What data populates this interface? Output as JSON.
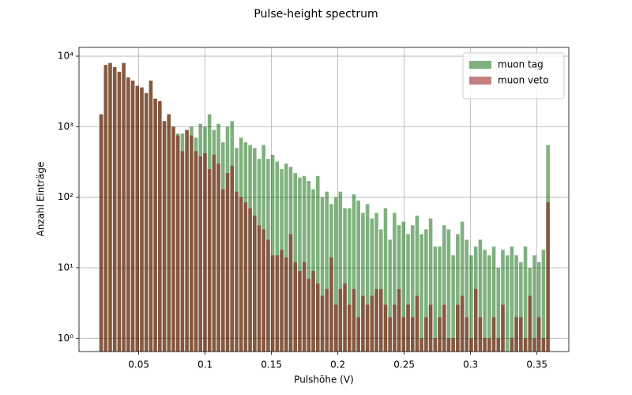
{
  "chart_data": {
    "type": "histogram",
    "title": "Pulse-height spectrum",
    "x_label": "Pulshöhe (V)",
    "y_label": "Anzahl Einträge",
    "bins": [
      0.02,
      0.0234,
      0.0268,
      0.0302,
      0.0336,
      0.037,
      0.0404,
      0.0438,
      0.0472,
      0.0506,
      0.054,
      0.0574,
      0.0608,
      0.0642,
      0.0676,
      0.071,
      0.0744,
      0.0778,
      0.0812,
      0.0846,
      0.088,
      0.0914,
      0.0948,
      0.0982,
      0.1016,
      0.105,
      0.1084,
      0.1118,
      0.1152,
      0.1186,
      0.122,
      0.1254,
      0.1288,
      0.1322,
      0.1356,
      0.139,
      0.1424,
      0.1458,
      0.1492,
      0.1526,
      0.156,
      0.1594,
      0.1628,
      0.1662,
      0.1696,
      0.173,
      0.1764,
      0.1798,
      0.1832,
      0.1866,
      0.19,
      0.1934,
      0.1968,
      0.2002,
      0.2036,
      0.207,
      0.2104,
      0.2138,
      0.2172,
      0.2206,
      0.224,
      0.2274,
      0.2308,
      0.2342,
      0.2376,
      0.241,
      0.2444,
      0.2478,
      0.2512,
      0.2546,
      0.258,
      0.2614,
      0.2648,
      0.2682,
      0.2716,
      0.275,
      0.2784,
      0.2818,
      0.2852,
      0.2886,
      0.292,
      0.2954,
      0.2988,
      0.3022,
      0.3056,
      0.309,
      0.3124,
      0.3158,
      0.3192,
      0.3226,
      0.326,
      0.3294,
      0.3328,
      0.3362,
      0.3396,
      0.343,
      0.3464,
      0.3498,
      0.3532,
      0.3566,
      0.36
    ],
    "series": [
      {
        "name": "muon tag",
        "color": "#006400",
        "values": [
          1500,
          7500,
          8000,
          7000,
          6000,
          8000,
          5000,
          4500,
          3800,
          3600,
          3000,
          4500,
          2500,
          2300,
          1200,
          1500,
          1000,
          800,
          800,
          900,
          1000,
          700,
          1100,
          1000,
          1500,
          900,
          1100,
          600,
          1000,
          1200,
          500,
          700,
          600,
          550,
          500,
          350,
          550,
          350,
          400,
          320,
          250,
          300,
          270,
          220,
          190,
          200,
          170,
          130,
          200,
          100,
          120,
          80,
          100,
          120,
          70,
          70,
          110,
          90,
          60,
          80,
          50,
          60,
          35,
          70,
          25,
          60,
          40,
          45,
          30,
          40,
          55,
          30,
          35,
          50,
          20,
          20,
          40,
          35,
          15,
          30,
          45,
          25,
          15,
          20,
          25,
          18,
          15,
          20,
          10,
          18,
          15,
          20,
          15,
          12,
          20,
          10,
          15,
          12,
          18,
          550
        ]
      },
      {
        "name": "muon veto",
        "color": "#8b0000",
        "values": [
          1500,
          7500,
          8000,
          7000,
          6000,
          8000,
          5000,
          4500,
          3800,
          3600,
          3000,
          4500,
          2500,
          2300,
          1200,
          1500,
          1000,
          750,
          450,
          900,
          750,
          450,
          380,
          420,
          250,
          400,
          300,
          130,
          220,
          280,
          120,
          100,
          85,
          70,
          55,
          40,
          35,
          25,
          15,
          15,
          18,
          14,
          30,
          12,
          9,
          12,
          7,
          9,
          6,
          4,
          5,
          14,
          3,
          5,
          6,
          3,
          5,
          2,
          4,
          3,
          4,
          5,
          5,
          3,
          2,
          3,
          5,
          2,
          3,
          2,
          4,
          1,
          2,
          3,
          1,
          2,
          3,
          1,
          1,
          3,
          4,
          2,
          1,
          5,
          2,
          1,
          1,
          2,
          1,
          3,
          0,
          1,
          2,
          2,
          1,
          4,
          1,
          2,
          1,
          85
        ]
      }
    ],
    "alpha": 0.5,
    "rwidth": 0.8,
    "xlim": [
      0.005,
      0.374
    ],
    "xticks": [
      0.05,
      0.1,
      0.15,
      0.2,
      0.25,
      0.3,
      0.35
    ],
    "ylim": [
      0.65,
      13300
    ],
    "yscale": "log",
    "yticks": [
      {
        "value": 1,
        "label": "10⁰"
      },
      {
        "value": 10,
        "label": "10¹"
      },
      {
        "value": 100,
        "label": "10²"
      },
      {
        "value": 1000,
        "label": "10³"
      },
      {
        "value": 10000,
        "label": "10⁴"
      }
    ],
    "grid": true,
    "legend": "upper right"
  }
}
